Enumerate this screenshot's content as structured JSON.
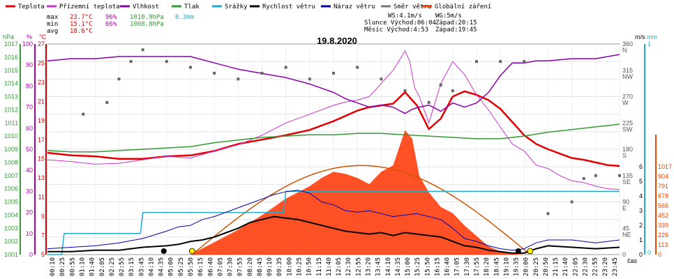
{
  "chart_data": {
    "type": "line",
    "title": "19.8.2020",
    "legend": [
      {
        "label": "Teplota",
        "color": "#e00000"
      },
      {
        "label": "Přízemní teplota",
        "color": "#cc33cc"
      },
      {
        "label": "Vlhkost",
        "color": "#8800aa"
      },
      {
        "label": "Tlak",
        "color": "#339933"
      },
      {
        "label": "Srážky",
        "color": "#22aacc"
      },
      {
        "label": "Rychlost větru",
        "color": "#000000"
      },
      {
        "label": "Náraz větru",
        "color": "#0000aa"
      },
      {
        "label": "Směr větru",
        "color": "#777777"
      },
      {
        "label": "Globální záření",
        "color": "#ee4400"
      }
    ],
    "stats": {
      "max": {
        "label": "max",
        "temp": "23.7°C",
        "hum": "96%",
        "press": "1010.9hPa",
        "rain": "0.3mm"
      },
      "min": {
        "label": "min",
        "temp": "15.1°C",
        "hum": "66%",
        "press": "1008.8hPa"
      },
      "avg": {
        "label": "avg",
        "temp": "18.6°C"
      }
    },
    "info": {
      "ws": "WS:4.1m/s",
      "wg": "WG:5m/s",
      "slunce": "Slunce Východ:06:04",
      "slunce_zapad": "Západ:20:15",
      "mesic": "Měsíc Východ:4:53",
      "mesic_zapad": "Západ:19:45"
    },
    "axes": {
      "hpa": {
        "unit": "hPa",
        "ticks": [
          "1017",
          "1016",
          "1015",
          "1014",
          "1013",
          "1012",
          "1011",
          "1010",
          "1009",
          "1008",
          "1007",
          "1006",
          "1005",
          "1004",
          "1003",
          "1002",
          "1001"
        ],
        "ylim": [
          1001,
          1017
        ]
      },
      "pct": {
        "unit": "%",
        "ticks": [
          "100",
          "90",
          "80",
          "70",
          "60",
          "50",
          "40",
          "30",
          "20",
          "10",
          "0"
        ],
        "ylim": [
          0,
          100
        ]
      },
      "temp": {
        "unit": "°C",
        "ticks": [
          "27",
          "25",
          "23",
          "21",
          "19",
          "17",
          "15",
          "13",
          "11",
          "9",
          "7",
          "5"
        ],
        "ylim": [
          5,
          29
        ]
      },
      "wind": {
        "unit": "m/s",
        "ticks": [
          "6",
          "5",
          "4",
          "3",
          "2",
          "1",
          "0"
        ],
        "ylim": [
          0,
          6
        ]
      },
      "rain": {
        "unit": "mm",
        "ticks": [
          "1",
          "0"
        ],
        "ylim": [
          0,
          1
        ]
      },
      "dir": {
        "ticks": [
          "360",
          "N",
          "315",
          "NW",
          "270",
          "W",
          "225",
          "SW",
          "180",
          "S",
          "135",
          "SE",
          "90",
          "E",
          "45",
          "NE",
          "0"
        ]
      },
      "rad": {
        "ticks": [
          "1017",
          "904",
          "791",
          "678",
          "565",
          "452",
          "339",
          "226",
          "113",
          "0"
        ],
        "ylim": [
          0,
          1017
        ]
      },
      "x_label": "čas",
      "x_ticks": [
        "00:10",
        "00:25",
        "00:55",
        "01:10",
        "01:40",
        "02:05",
        "02:25",
        "02:55",
        "03:15",
        "03:45",
        "04:10",
        "04:35",
        "05:00",
        "05:25",
        "05:50",
        "06:15",
        "06:40",
        "07:05",
        "07:30",
        "07:55",
        "08:20",
        "08:45",
        "09:10",
        "09:35",
        "10:00",
        "10:25",
        "10:50",
        "11:15",
        "11:40",
        "12:05",
        "12:30",
        "12:55",
        "13:20",
        "13:45",
        "14:10",
        "14:35",
        "15:00",
        "15:25",
        "15:50",
        "16:15",
        "16:40",
        "17:05",
        "17:30",
        "17:55",
        "18:20",
        "18:45",
        "19:10",
        "19:35",
        "20:00",
        "20:25",
        "20:50",
        "21:15",
        "21:40",
        "22:05",
        "22:30",
        "22:55",
        "23:20",
        "23:45"
      ]
    },
    "series": [
      {
        "name": "Teplota",
        "unit": "°C",
        "x": [
          0,
          1,
          2,
          3,
          4,
          5,
          6,
          7,
          8,
          9,
          10,
          11,
          12,
          12.5,
          13,
          13.5,
          14,
          14.5,
          15,
          15.5,
          16,
          16.5,
          17,
          17.5,
          18,
          18.5,
          19,
          19.5,
          20,
          20.5,
          21,
          21.5,
          22,
          22.5,
          23,
          23.5,
          24
        ],
        "values": [
          16.6,
          16.3,
          16.2,
          15.9,
          15.9,
          16.2,
          16.3,
          16.8,
          17.6,
          18.1,
          18.6,
          19.2,
          20.2,
          20.8,
          21.4,
          21.8,
          22.0,
          22.2,
          23.5,
          22.0,
          19.3,
          20.5,
          23.0,
          23.6,
          23.2,
          22.6,
          21.6,
          20.1,
          18.6,
          17.6,
          17.0,
          16.5,
          16.0,
          15.8,
          15.5,
          15.2,
          15.1
        ]
      },
      {
        "name": "Přízemní teplota",
        "unit": "°C",
        "x": [
          0,
          1,
          2,
          3,
          4,
          5,
          6,
          7,
          8,
          9,
          10,
          11,
          12,
          12.5,
          13,
          13.5,
          14,
          14.5,
          15,
          15.2,
          15.4,
          15.6,
          15.8,
          16,
          16.5,
          17,
          17.5,
          18,
          18.5,
          19,
          19.5,
          20,
          20.5,
          21,
          21.5,
          22,
          22.5,
          23,
          23.5,
          24
        ],
        "values": [
          15.8,
          15.6,
          15.3,
          15.4,
          15.8,
          16.2,
          16.0,
          16.8,
          17.5,
          18.6,
          20.0,
          21.0,
          22.0,
          22.4,
          22.6,
          23.0,
          24.5,
          26.0,
          28.2,
          27.0,
          24.0,
          23.0,
          21.5,
          20.0,
          24.5,
          27.0,
          25.5,
          23.2,
          21.5,
          19.5,
          17.6,
          16.8,
          15.2,
          14.8,
          14.0,
          13.4,
          13.2,
          12.8,
          12.5,
          12.4
        ]
      },
      {
        "name": "Vlhkost",
        "unit": "%",
        "x": [
          0,
          1,
          2,
          3,
          4,
          5,
          6,
          7,
          8,
          9,
          10,
          11,
          12,
          12.5,
          13,
          13.5,
          14,
          14.5,
          15,
          15.3,
          15.6,
          16,
          16.5,
          17,
          17.5,
          18,
          18.5,
          19,
          19.5,
          20,
          20.5,
          21,
          22,
          23,
          24
        ],
        "values": [
          92,
          93,
          93,
          94,
          94,
          94,
          94,
          91,
          88,
          86,
          84,
          81,
          77,
          74,
          72,
          70,
          71,
          70,
          67,
          69,
          70,
          71,
          68,
          72,
          70,
          72,
          77,
          85,
          91,
          91,
          92,
          92,
          93,
          93,
          95
        ]
      },
      {
        "name": "Tlak",
        "unit": "hPa",
        "x": [
          0,
          1,
          2,
          3,
          4,
          5,
          6,
          7,
          8,
          9,
          10,
          11,
          12,
          13,
          14,
          15,
          16,
          17,
          18,
          19,
          20,
          21,
          22,
          23,
          24
        ],
        "values": [
          1008.9,
          1008.8,
          1008.8,
          1008.9,
          1009.0,
          1009.1,
          1009.2,
          1009.5,
          1009.7,
          1009.9,
          1010.0,
          1010.1,
          1010.1,
          1010.2,
          1010.2,
          1010.1,
          1010.0,
          1009.9,
          1009.8,
          1009.8,
          1010.0,
          1010.3,
          1010.5,
          1010.7,
          1010.9
        ]
      },
      {
        "name": "Srážky",
        "unit": "mm",
        "x": [
          0,
          0.6,
          0.7,
          3.9,
          4.0,
          9.9,
          10.0,
          24
        ],
        "values": [
          0.0,
          0.0,
          0.1,
          0.1,
          0.2,
          0.2,
          0.3,
          0.3
        ]
      },
      {
        "name": "Rychlost větru",
        "unit": "m/s",
        "x": [
          0,
          1,
          2,
          3,
          4,
          5,
          5.5,
          6,
          6.5,
          7,
          7.5,
          8,
          8.5,
          9,
          9.5,
          10,
          10.5,
          11,
          11.5,
          12,
          12.5,
          13,
          13.5,
          14,
          14.5,
          15,
          15.5,
          16,
          16.5,
          17,
          17.5,
          18,
          18.5,
          19,
          19.5,
          20,
          20.5,
          21,
          22,
          23,
          24
        ],
        "values": [
          0.2,
          0.2,
          0.3,
          0.3,
          0.5,
          0.6,
          0.7,
          0.9,
          1.0,
          1.2,
          1.5,
          1.8,
          2.2,
          2.4,
          2.6,
          2.5,
          2.4,
          2.2,
          2.0,
          1.8,
          1.6,
          1.5,
          1.4,
          1.5,
          1.3,
          1.5,
          1.4,
          1.3,
          1.2,
          0.9,
          0.6,
          0.5,
          0.3,
          0.2,
          0.1,
          0.1,
          0.4,
          0.6,
          0.5,
          0.4,
          0.5
        ]
      },
      {
        "name": "Náraz větru",
        "unit": "m/s",
        "x": [
          0,
          1,
          2,
          3,
          4,
          5,
          5.5,
          6,
          6.5,
          7,
          7.5,
          8,
          8.5,
          9,
          9.5,
          10,
          10.5,
          11,
          11.5,
          12,
          12.5,
          13,
          13.5,
          14,
          14.5,
          15,
          15.5,
          16,
          16.5,
          17,
          17.5,
          18,
          18.5,
          19,
          19.5,
          20,
          20.5,
          21,
          22,
          23,
          24
        ],
        "values": [
          0.4,
          0.5,
          0.6,
          0.8,
          1.1,
          1.6,
          1.9,
          2.0,
          2.4,
          2.6,
          2.9,
          3.2,
          3.5,
          3.8,
          4.1,
          4.3,
          4.4,
          4.2,
          3.6,
          3.4,
          3.0,
          2.9,
          3.0,
          2.8,
          2.6,
          2.7,
          2.8,
          2.6,
          2.4,
          1.8,
          1.1,
          0.9,
          0.6,
          0.4,
          0.3,
          0.4,
          0.8,
          1.0,
          1.0,
          0.8,
          1.0
        ]
      },
      {
        "name": "Směr větru",
        "unit": "°",
        "x": [
          1.5,
          2.5,
          3,
          3.5,
          4,
          5,
          6,
          7,
          8,
          9,
          10,
          11,
          12,
          13,
          14,
          15,
          16,
          16.5,
          17,
          18,
          19,
          20,
          21,
          22,
          22.5,
          23,
          24
        ],
        "values": [
          240,
          260,
          300,
          330,
          350,
          330,
          320,
          310,
          300,
          310,
          320,
          300,
          310,
          320,
          300,
          280,
          260,
          290,
          280,
          330,
          330,
          330,
          70,
          90,
          130,
          135,
          135
        ]
      },
      {
        "name": "Globální záření",
        "unit": "W/m²",
        "x": [
          6,
          7,
          8,
          9,
          10,
          11,
          11.5,
          12,
          12.5,
          13,
          13.5,
          14,
          14.5,
          15,
          15.3,
          15.6,
          16,
          16.5,
          17,
          17.5,
          18,
          18.5,
          19,
          19.5,
          20
        ],
        "values": [
          0,
          60,
          120,
          190,
          270,
          330,
          370,
          400,
          390,
          370,
          340,
          400,
          430,
          600,
          560,
          380,
          300,
          230,
          200,
          140,
          90,
          40,
          15,
          5,
          0
        ]
      }
    ]
  }
}
